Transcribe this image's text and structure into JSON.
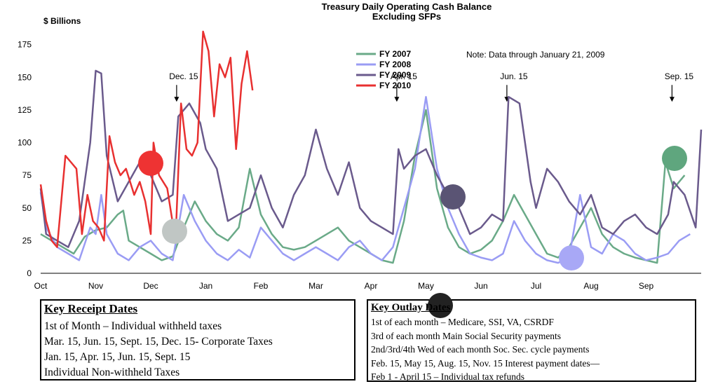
{
  "chart_data": {
    "type": "line",
    "title": "Treasury Daily Operating Cash Balance",
    "subtitle": "Excluding SFPs",
    "ylabel": "$ Billions",
    "ylim": [
      0,
      185
    ],
    "yticks": [
      0,
      25,
      50,
      75,
      100,
      125,
      150,
      175
    ],
    "x_months": [
      "Oct",
      "Nov",
      "Dec",
      "Jan",
      "Feb",
      "Mar",
      "Apr",
      "May",
      "Jun",
      "Jul",
      "Aug",
      "Sep"
    ],
    "note": "Note: Data through January  21,  2009",
    "legend_position": "top-center",
    "annotations": [
      {
        "label": "Dec. 15",
        "month": 2.47
      },
      {
        "label": "Apr. 15",
        "month": 6.47
      },
      {
        "label": "Jun. 15",
        "month": 8.47
      },
      {
        "label": "Sep. 15",
        "month": 11.47
      }
    ],
    "series": [
      {
        "name": "FY 2007",
        "color": "#6aaa88",
        "points": [
          [
            0,
            30
          ],
          [
            0.2,
            25
          ],
          [
            0.4,
            20
          ],
          [
            0.6,
            15
          ],
          [
            0.8,
            28
          ],
          [
            1.0,
            33
          ],
          [
            1.2,
            35
          ],
          [
            1.4,
            45
          ],
          [
            1.5,
            48
          ],
          [
            1.6,
            25
          ],
          [
            1.8,
            20
          ],
          [
            2.0,
            15
          ],
          [
            2.2,
            10
          ],
          [
            2.4,
            13
          ],
          [
            2.6,
            35
          ],
          [
            2.8,
            55
          ],
          [
            3.0,
            40
          ],
          [
            3.2,
            30
          ],
          [
            3.4,
            25
          ],
          [
            3.6,
            35
          ],
          [
            3.8,
            80
          ],
          [
            4.0,
            45
          ],
          [
            4.2,
            30
          ],
          [
            4.4,
            20
          ],
          [
            4.6,
            18
          ],
          [
            4.8,
            20
          ],
          [
            5.0,
            25
          ],
          [
            5.2,
            30
          ],
          [
            5.4,
            35
          ],
          [
            5.6,
            25
          ],
          [
            5.8,
            20
          ],
          [
            6.0,
            15
          ],
          [
            6.2,
            10
          ],
          [
            6.4,
            8
          ],
          [
            6.6,
            40
          ],
          [
            6.8,
            90
          ],
          [
            7.0,
            125
          ],
          [
            7.2,
            65
          ],
          [
            7.4,
            35
          ],
          [
            7.6,
            20
          ],
          [
            7.8,
            15
          ],
          [
            8.0,
            18
          ],
          [
            8.2,
            25
          ],
          [
            8.4,
            40
          ],
          [
            8.6,
            60
          ],
          [
            8.8,
            45
          ],
          [
            9.0,
            30
          ],
          [
            9.2,
            15
          ],
          [
            9.4,
            12
          ],
          [
            9.6,
            20
          ],
          [
            9.8,
            35
          ],
          [
            10.0,
            50
          ],
          [
            10.2,
            30
          ],
          [
            10.4,
            20
          ],
          [
            10.6,
            15
          ],
          [
            10.8,
            12
          ],
          [
            11.0,
            10
          ],
          [
            11.2,
            8
          ],
          [
            11.35,
            85
          ],
          [
            11.5,
            65
          ],
          [
            11.7,
            75
          ]
        ]
      },
      {
        "name": "FY 2008",
        "color": "#9a9cf4",
        "points": [
          [
            0,
            62
          ],
          [
            0.1,
            35
          ],
          [
            0.3,
            20
          ],
          [
            0.5,
            15
          ],
          [
            0.7,
            10
          ],
          [
            0.9,
            35
          ],
          [
            1.0,
            30
          ],
          [
            1.1,
            60
          ],
          [
            1.2,
            30
          ],
          [
            1.4,
            15
          ],
          [
            1.6,
            10
          ],
          [
            1.8,
            20
          ],
          [
            2.0,
            25
          ],
          [
            2.2,
            15
          ],
          [
            2.4,
            10
          ],
          [
            2.6,
            60
          ],
          [
            2.8,
            40
          ],
          [
            3.0,
            25
          ],
          [
            3.2,
            15
          ],
          [
            3.4,
            10
          ],
          [
            3.6,
            18
          ],
          [
            3.8,
            12
          ],
          [
            4.0,
            35
          ],
          [
            4.2,
            25
          ],
          [
            4.4,
            15
          ],
          [
            4.6,
            10
          ],
          [
            4.8,
            15
          ],
          [
            5.0,
            20
          ],
          [
            5.2,
            15
          ],
          [
            5.4,
            10
          ],
          [
            5.6,
            20
          ],
          [
            5.8,
            25
          ],
          [
            6.0,
            15
          ],
          [
            6.2,
            10
          ],
          [
            6.4,
            20
          ],
          [
            6.6,
            50
          ],
          [
            6.8,
            80
          ],
          [
            7.0,
            135
          ],
          [
            7.2,
            80
          ],
          [
            7.4,
            50
          ],
          [
            7.6,
            30
          ],
          [
            7.8,
            15
          ],
          [
            8.0,
            12
          ],
          [
            8.2,
            10
          ],
          [
            8.4,
            15
          ],
          [
            8.6,
            40
          ],
          [
            8.8,
            25
          ],
          [
            9.0,
            15
          ],
          [
            9.2,
            10
          ],
          [
            9.4,
            8
          ],
          [
            9.6,
            12
          ],
          [
            9.8,
            60
          ],
          [
            10.0,
            20
          ],
          [
            10.2,
            15
          ],
          [
            10.4,
            30
          ],
          [
            10.6,
            25
          ],
          [
            10.8,
            15
          ],
          [
            11.0,
            10
          ],
          [
            11.2,
            12
          ],
          [
            11.4,
            15
          ],
          [
            11.6,
            25
          ],
          [
            11.8,
            30
          ]
        ]
      },
      {
        "name": "FY 2009",
        "color": "#6a5a8c",
        "points": [
          [
            0,
            65
          ],
          [
            0.1,
            30
          ],
          [
            0.3,
            25
          ],
          [
            0.5,
            20
          ],
          [
            0.7,
            40
          ],
          [
            0.9,
            100
          ],
          [
            1.0,
            155
          ],
          [
            1.1,
            153
          ],
          [
            1.2,
            90
          ],
          [
            1.4,
            55
          ],
          [
            1.6,
            70
          ],
          [
            1.8,
            85
          ],
          [
            2.0,
            75
          ],
          [
            2.2,
            55
          ],
          [
            2.4,
            60
          ],
          [
            2.5,
            120
          ],
          [
            2.7,
            130
          ],
          [
            2.9,
            115
          ],
          [
            3.0,
            95
          ],
          [
            3.2,
            80
          ],
          [
            3.4,
            40
          ],
          [
            3.6,
            45
          ],
          [
            3.8,
            50
          ],
          [
            4.0,
            75
          ],
          [
            4.2,
            50
          ],
          [
            4.4,
            35
          ],
          [
            4.6,
            60
          ],
          [
            4.8,
            75
          ],
          [
            5.0,
            110
          ],
          [
            5.2,
            80
          ],
          [
            5.4,
            60
          ],
          [
            5.6,
            85
          ],
          [
            5.8,
            50
          ],
          [
            6.0,
            40
          ],
          [
            6.2,
            35
          ],
          [
            6.4,
            30
          ],
          [
            6.5,
            95
          ],
          [
            6.6,
            80
          ],
          [
            6.8,
            90
          ],
          [
            7.0,
            95
          ],
          [
            7.2,
            75
          ],
          [
            7.4,
            60
          ],
          [
            7.6,
            50
          ],
          [
            7.8,
            30
          ],
          [
            8.0,
            35
          ],
          [
            8.2,
            45
          ],
          [
            8.4,
            40
          ],
          [
            8.5,
            135
          ],
          [
            8.7,
            130
          ],
          [
            8.9,
            70
          ],
          [
            9.0,
            50
          ],
          [
            9.2,
            80
          ],
          [
            9.4,
            70
          ],
          [
            9.6,
            55
          ],
          [
            9.8,
            45
          ],
          [
            10.0,
            60
          ],
          [
            10.2,
            35
          ],
          [
            10.4,
            30
          ],
          [
            10.6,
            40
          ],
          [
            10.8,
            45
          ],
          [
            11.0,
            35
          ],
          [
            11.2,
            30
          ],
          [
            11.4,
            45
          ],
          [
            11.5,
            70
          ],
          [
            11.7,
            60
          ],
          [
            11.9,
            35
          ],
          [
            12.0,
            110
          ]
        ]
      },
      {
        "name": "FY 2010",
        "color": "#e83030",
        "points": [
          [
            0,
            68
          ],
          [
            0.1,
            40
          ],
          [
            0.2,
            25
          ],
          [
            0.3,
            20
          ],
          [
            0.45,
            90
          ],
          [
            0.55,
            85
          ],
          [
            0.65,
            80
          ],
          [
            0.75,
            30
          ],
          [
            0.85,
            60
          ],
          [
            0.95,
            40
          ],
          [
            1.05,
            35
          ],
          [
            1.15,
            25
          ],
          [
            1.25,
            105
          ],
          [
            1.35,
            85
          ],
          [
            1.45,
            75
          ],
          [
            1.55,
            80
          ],
          [
            1.7,
            60
          ],
          [
            1.8,
            70
          ],
          [
            1.9,
            55
          ],
          [
            2.0,
            30
          ],
          [
            2.05,
            100
          ],
          [
            2.15,
            75
          ],
          [
            2.3,
            65
          ],
          [
            2.45,
            25
          ],
          [
            2.55,
            130
          ],
          [
            2.65,
            95
          ],
          [
            2.75,
            90
          ],
          [
            2.85,
            100
          ],
          [
            2.95,
            185
          ],
          [
            3.05,
            170
          ],
          [
            3.15,
            120
          ],
          [
            3.25,
            160
          ],
          [
            3.35,
            150
          ],
          [
            3.45,
            165
          ],
          [
            3.55,
            95
          ],
          [
            3.65,
            145
          ],
          [
            3.75,
            170
          ],
          [
            3.85,
            140
          ]
        ]
      }
    ]
  },
  "markers": [
    {
      "name": "marker-red",
      "color": "#ee3333"
    },
    {
      "name": "marker-gray",
      "color": "#c0c6c4"
    },
    {
      "name": "marker-purple",
      "color": "#5a5474"
    },
    {
      "name": "marker-lavender",
      "color": "#a8a8f6"
    },
    {
      "name": "marker-green",
      "color": "#5fa67e"
    },
    {
      "name": "marker-black",
      "color": "#222222"
    }
  ],
  "receipts": {
    "heading": "Key Receipt Dates",
    "lines": [
      "1st of Month – Individual withheld taxes",
      "Mar. 15, Jun. 15, Sept. 15, Dec. 15- Corporate Taxes",
      "Jan. 15, Apr. 15, Jun. 15, Sept. 15",
      "Individual Non-withheld Taxes"
    ]
  },
  "outlays": {
    "heading": "Key Outlay Dates",
    "lines": [
      "1st of each month – Medicare, SSI, VA, CSRDF",
      "3rd of each month Main Social Security payments",
      "2nd/3rd/4th Wed of each month Soc. Sec. cycle payments",
      "Feb. 15, May 15, Aug. 15, Nov. 15 Interest payment dates—",
      "Feb 1 - April 15 – Individual tax refunds"
    ]
  }
}
